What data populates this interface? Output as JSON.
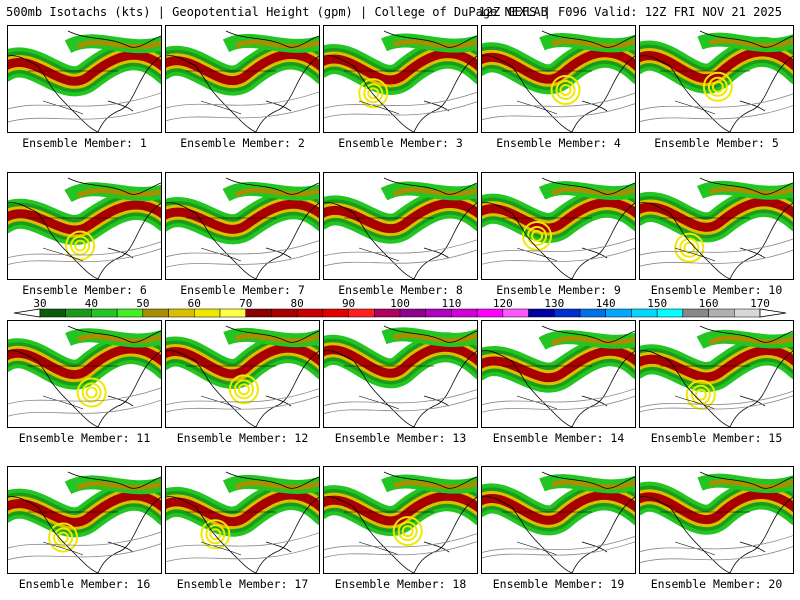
{
  "header": {
    "left": "500mb Isotachs (kts) | Geopotential Height (gpm) | College of DuPage NEXLAB",
    "right": "12Z GEFS | F096 Valid: 12Z FRI NOV 21 2025"
  },
  "members": [
    {
      "label": "Ensemble Member: 1"
    },
    {
      "label": "Ensemble Member: 2"
    },
    {
      "label": "Ensemble Member: 3"
    },
    {
      "label": "Ensemble Member: 4"
    },
    {
      "label": "Ensemble Member: 5"
    },
    {
      "label": "Ensemble Member: 6"
    },
    {
      "label": "Ensemble Member: 7"
    },
    {
      "label": "Ensemble Member: 8"
    },
    {
      "label": "Ensemble Member: 9"
    },
    {
      "label": "Ensemble Member: 10"
    },
    {
      "label": "Ensemble Member: 11"
    },
    {
      "label": "Ensemble Member: 12"
    },
    {
      "label": "Ensemble Member: 13"
    },
    {
      "label": "Ensemble Member: 14"
    },
    {
      "label": "Ensemble Member: 15"
    },
    {
      "label": "Ensemble Member: 16"
    },
    {
      "label": "Ensemble Member: 17"
    },
    {
      "label": "Ensemble Member: 18"
    },
    {
      "label": "Ensemble Member: 19"
    },
    {
      "label": "Ensemble Member: 20"
    }
  ],
  "colorbar": {
    "ticks": [
      "30",
      "40",
      "50",
      "60",
      "70",
      "80",
      "90",
      "100",
      "110",
      "120",
      "130",
      "140",
      "150",
      "160",
      "170"
    ],
    "colors": [
      "#0a5c0a",
      "#1a9b1a",
      "#22c522",
      "#44ee22",
      "#a88f00",
      "#d8c000",
      "#f0e800",
      "#ffff44",
      "#8b0000",
      "#a80000",
      "#c80000",
      "#e00000",
      "#ff2020",
      "#b00060",
      "#900090",
      "#b000c0",
      "#d000d8",
      "#ff00ff",
      "#ff55ff",
      "#0000a0",
      "#0030d0",
      "#0070e8",
      "#00a8ff",
      "#00d8ff",
      "#00ffff",
      "#888888",
      "#b0b0b0",
      "#d8d8d8"
    ]
  }
}
